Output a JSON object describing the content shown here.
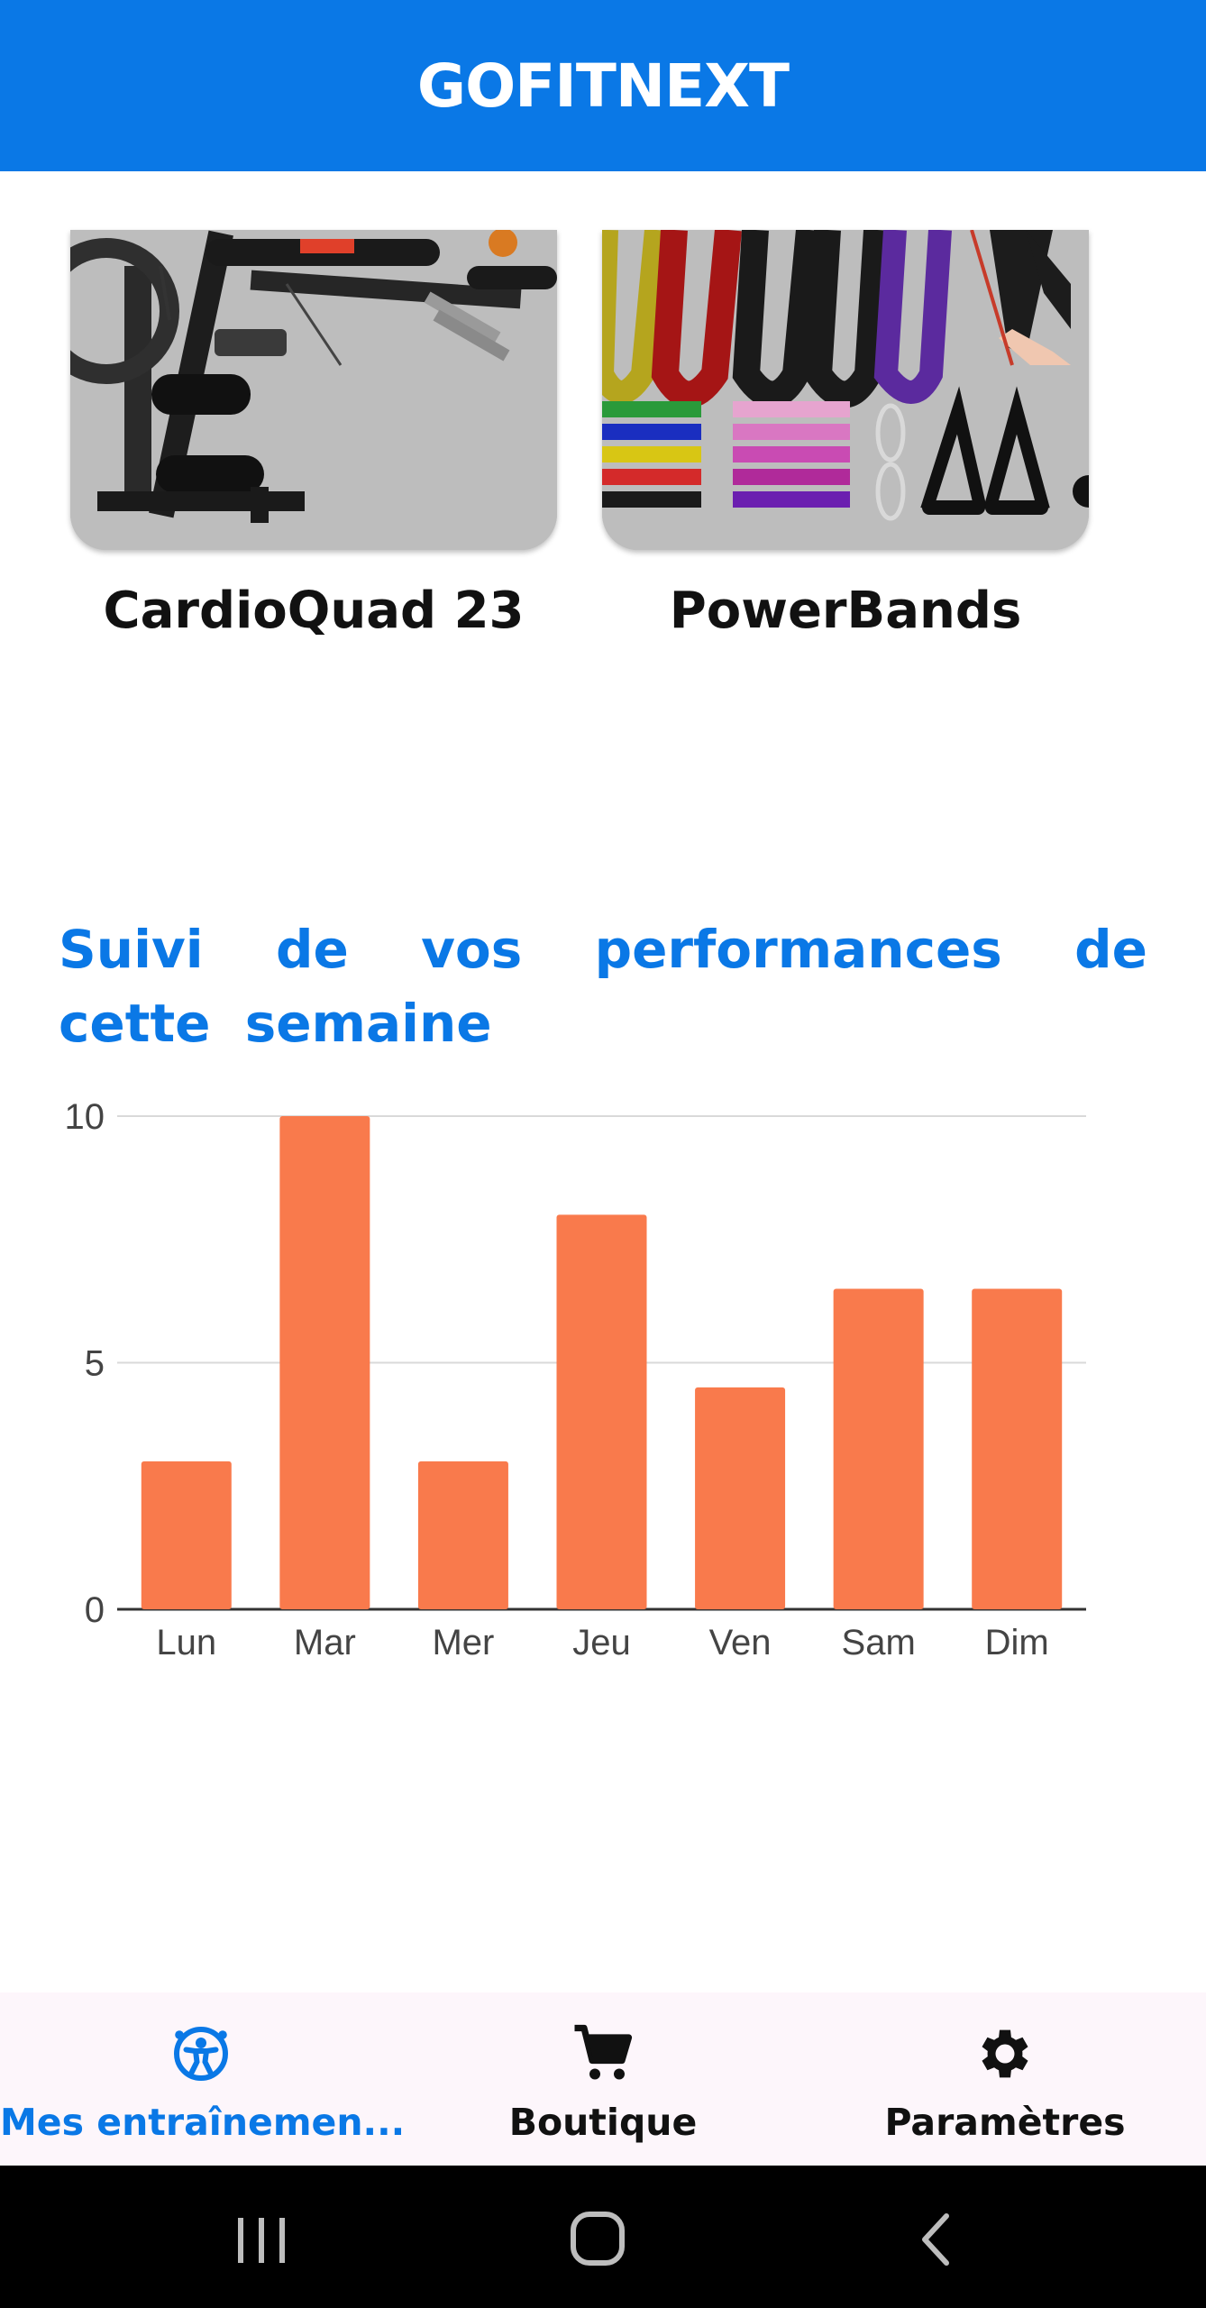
{
  "app": {
    "title": "GOFITNEXT"
  },
  "products": [
    {
      "name": "CardioQuad 23",
      "image_icon": "multi-gym-machine-image"
    },
    {
      "name": "PowerBands",
      "image_icon": "resistance-bands-image"
    }
  ],
  "performance": {
    "title": "Suivi de vos performances de cette semaine"
  },
  "chart_data": {
    "type": "bar",
    "categories": [
      "Lun",
      "Mar",
      "Mer",
      "Jeu",
      "Ven",
      "Sam",
      "Dim"
    ],
    "values": [
      3,
      10,
      3,
      8,
      4.5,
      6.5,
      6.5
    ],
    "ylim": [
      0,
      10
    ],
    "yticks": [
      0,
      5,
      10
    ],
    "grid": true,
    "bar_color": "#f97a4c",
    "title": "",
    "xlabel": "",
    "ylabel": ""
  },
  "bottom_nav": {
    "items": [
      {
        "label": "Mes entraînemen...",
        "icon": "workout-icon",
        "active": true
      },
      {
        "label": "Boutique",
        "icon": "cart-icon",
        "active": false
      },
      {
        "label": "Paramètres",
        "icon": "gear-icon",
        "active": false
      }
    ]
  },
  "colors": {
    "primary": "#0a78e6",
    "bar": "#f97a4c",
    "nav_bg": "#fdf6fb"
  }
}
